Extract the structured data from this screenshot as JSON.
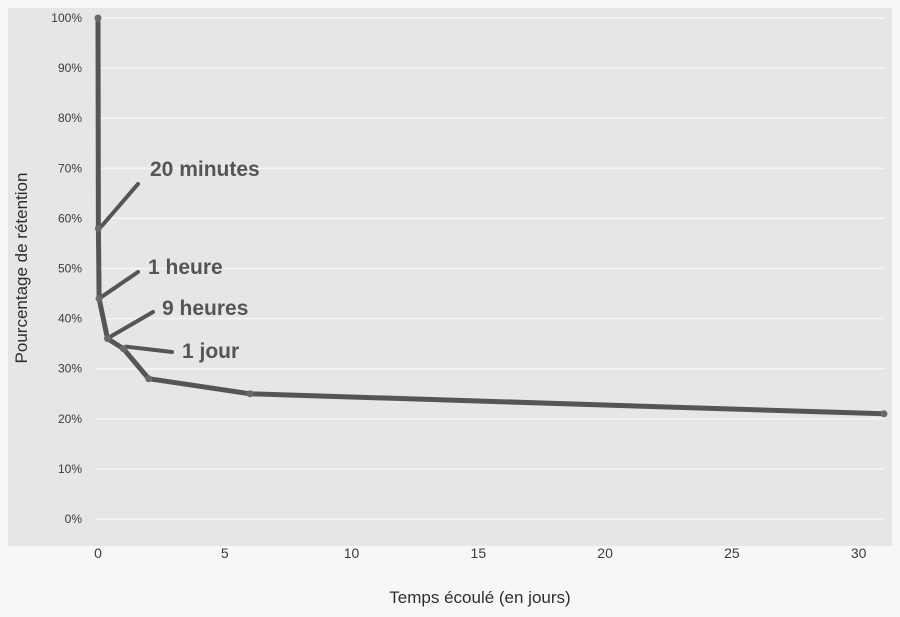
{
  "chart_data": {
    "type": "line",
    "title": "",
    "xlabel": "Temps écoulé (en jours)",
    "ylabel": "Pourcentage de rétention",
    "xlim": [
      0,
      31
    ],
    "ylim": [
      0,
      100
    ],
    "x_ticks": [
      0,
      5,
      10,
      15,
      20,
      25,
      30
    ],
    "y_ticks": [
      0,
      10,
      20,
      30,
      40,
      50,
      60,
      70,
      80,
      90,
      100
    ],
    "y_tick_labels": [
      "0%",
      "10%",
      "20%",
      "30%",
      "40%",
      "50%",
      "60%",
      "70%",
      "80%",
      "90%",
      "100%"
    ],
    "grid": "horizontal",
    "legend": "none",
    "series": [
      {
        "x": [
          0,
          0.014,
          0.042,
          0.375,
          1,
          2,
          6,
          31
        ],
        "y": [
          100,
          58,
          44,
          36,
          34,
          28,
          25,
          21
        ]
      }
    ],
    "annotations": [
      {
        "text": "20 minutes",
        "point_index": 1
      },
      {
        "text": "1 heure",
        "point_index": 2
      },
      {
        "text": "9 heures",
        "point_index": 3
      },
      {
        "text": "1 jour",
        "point_index": 4
      }
    ],
    "colors": {
      "plot_background": "#e6e6e6",
      "outer_background": "#f7f7f7",
      "gridline": "#f5f5f5",
      "line": "#555555",
      "marker": "#6a6a6a"
    }
  }
}
